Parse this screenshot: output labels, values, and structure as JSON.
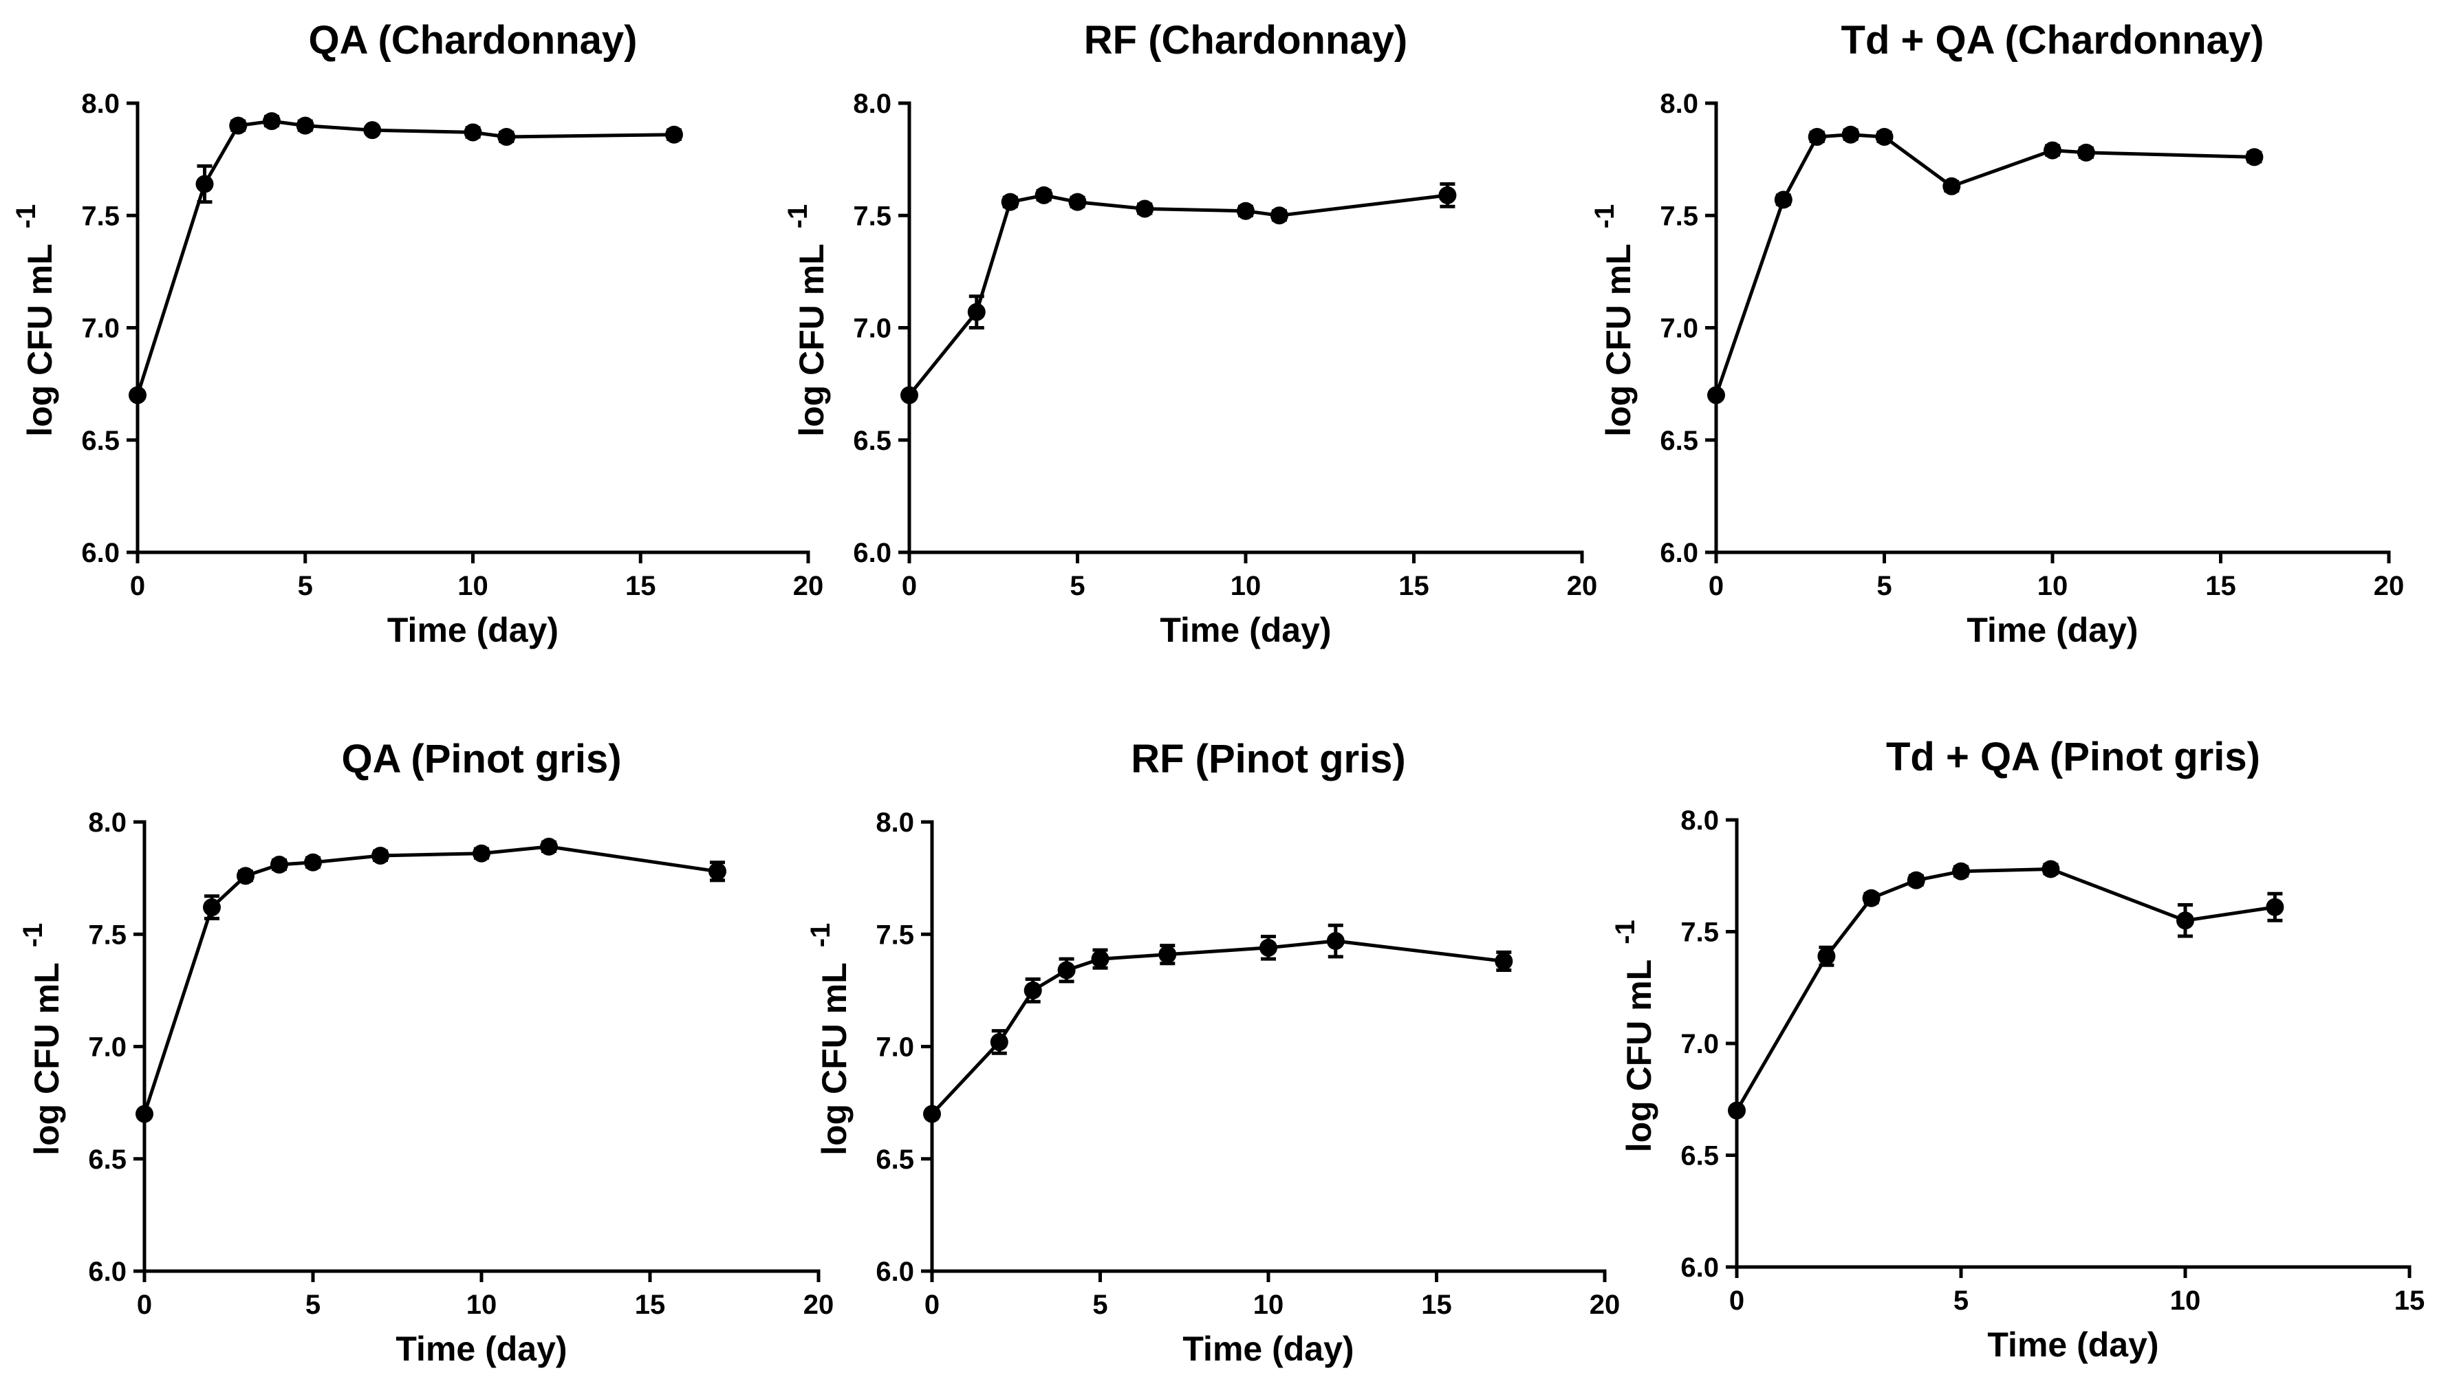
{
  "chart_data": [
    {
      "type": "line",
      "title": "QA  (Chardonnay)",
      "xlabel": "Time (day)",
      "ylabel": "log CFU mL",
      "ylabel_sup": "-1",
      "xlim": [
        0,
        20
      ],
      "ylim": [
        6.0,
        8.0
      ],
      "xticks": [
        0,
        5,
        10,
        15,
        20
      ],
      "yticks": [
        6.0,
        6.5,
        7.0,
        7.5,
        8.0
      ],
      "xtick_labels": [
        "0",
        "5",
        "10",
        "15",
        "20"
      ],
      "ytick_labels": [
        "6.0",
        "6.5",
        "7.0",
        "7.5",
        "8.0"
      ],
      "x": [
        0,
        2,
        3,
        4,
        5,
        7,
        10,
        11,
        16
      ],
      "y": [
        6.7,
        7.64,
        7.9,
        7.92,
        7.9,
        7.88,
        7.87,
        7.85,
        7.86
      ],
      "err": [
        0,
        0.08,
        0.02,
        0.02,
        0.02,
        0.01,
        0.02,
        0.02,
        0.02
      ]
    },
    {
      "type": "line",
      "title": "RF (Chardonnay)",
      "xlabel": "Time (day)",
      "ylabel": "log CFU mL",
      "ylabel_sup": "-1",
      "xlim": [
        0,
        20
      ],
      "ylim": [
        6.0,
        8.0
      ],
      "xticks": [
        0,
        5,
        10,
        15,
        20
      ],
      "yticks": [
        6.0,
        6.5,
        7.0,
        7.5,
        8.0
      ],
      "xtick_labels": [
        "0",
        "5",
        "10",
        "15",
        "20"
      ],
      "ytick_labels": [
        "6.0",
        "6.5",
        "7.0",
        "7.5",
        "8.0"
      ],
      "x": [
        0,
        2,
        3,
        4,
        5,
        7,
        10,
        11,
        16
      ],
      "y": [
        6.7,
        7.07,
        7.56,
        7.59,
        7.56,
        7.53,
        7.52,
        7.5,
        7.59
      ],
      "err": [
        0,
        0.07,
        0.02,
        0.02,
        0.02,
        0.02,
        0.02,
        0.02,
        0.05
      ]
    },
    {
      "type": "line",
      "title": "Td + QA (Chardonnay)",
      "xlabel": "Time (day)",
      "ylabel": "log CFU mL",
      "ylabel_sup": "-1",
      "xlim": [
        0,
        20
      ],
      "ylim": [
        6.0,
        8.0
      ],
      "xticks": [
        0,
        5,
        10,
        15,
        20
      ],
      "yticks": [
        6.0,
        6.5,
        7.0,
        7.5,
        8.0
      ],
      "xtick_labels": [
        "0",
        "5",
        "10",
        "15",
        "20"
      ],
      "ytick_labels": [
        "6.0",
        "6.5",
        "7.0",
        "7.5",
        "8.0"
      ],
      "x": [
        0,
        2,
        3,
        4,
        5,
        7,
        10,
        11,
        16
      ],
      "y": [
        6.7,
        7.57,
        7.85,
        7.86,
        7.85,
        7.63,
        7.79,
        7.78,
        7.76
      ],
      "err": [
        0,
        0.02,
        0.02,
        0.02,
        0.02,
        0.02,
        0.02,
        0.02,
        0.02
      ]
    },
    {
      "type": "line",
      "title": "QA (Pinot gris)",
      "xlabel": "Time (day)",
      "ylabel": "log CFU mL",
      "ylabel_sup": "-1",
      "xlim": [
        0,
        20
      ],
      "ylim": [
        6.0,
        8.0
      ],
      "xticks": [
        0,
        5,
        10,
        15,
        20
      ],
      "yticks": [
        6.0,
        6.5,
        7.0,
        7.5,
        8.0
      ],
      "xtick_labels": [
        "0",
        "5",
        "10",
        "15",
        "20"
      ],
      "ytick_labels": [
        "6.0",
        "6.5",
        "7.0",
        "7.5",
        "8.0"
      ],
      "x": [
        0,
        2,
        3,
        4,
        5,
        7,
        10,
        12,
        17
      ],
      "y": [
        6.7,
        7.62,
        7.76,
        7.81,
        7.82,
        7.85,
        7.86,
        7.89,
        7.78
      ],
      "err": [
        0,
        0.05,
        0.02,
        0.02,
        0.02,
        0.02,
        0.02,
        0.02,
        0.04
      ]
    },
    {
      "type": "line",
      "title": "RF (Pinot gris)",
      "xlabel": "Time (day)",
      "ylabel": "log CFU mL",
      "ylabel_sup": "-1",
      "xlim": [
        0,
        20
      ],
      "ylim": [
        6.0,
        8.0
      ],
      "xticks": [
        0,
        5,
        10,
        15,
        20
      ],
      "yticks": [
        6.0,
        6.5,
        7.0,
        7.5,
        8.0
      ],
      "xtick_labels": [
        "0",
        "5",
        "10",
        "15",
        "20"
      ],
      "ytick_labels": [
        "6.0",
        "6.5",
        "7.0",
        "7.5",
        "8.0"
      ],
      "x": [
        0,
        2,
        3,
        4,
        5,
        7,
        10,
        12,
        17
      ],
      "y": [
        6.7,
        7.02,
        7.25,
        7.34,
        7.39,
        7.41,
        7.44,
        7.47,
        7.38
      ],
      "err": [
        0,
        0.05,
        0.05,
        0.05,
        0.04,
        0.04,
        0.05,
        0.07,
        0.04
      ]
    },
    {
      "type": "line",
      "title": "Td + QA (Pinot gris)",
      "xlabel": "Time (day)",
      "ylabel": "log CFU mL",
      "ylabel_sup": "-1",
      "xlim": [
        0,
        15
      ],
      "ylim": [
        6.0,
        8.0
      ],
      "xticks": [
        0,
        5,
        10,
        15
      ],
      "yticks": [
        6.0,
        6.5,
        7.0,
        7.5,
        8.0
      ],
      "xtick_labels": [
        "0",
        "5",
        "10",
        "15"
      ],
      "ytick_labels": [
        "6.0",
        "6.5",
        "7.0",
        "7.5",
        "8.0"
      ],
      "x": [
        0,
        2,
        3,
        4,
        5,
        7,
        10,
        12
      ],
      "y": [
        6.7,
        7.39,
        7.65,
        7.73,
        7.77,
        7.78,
        7.55,
        7.61
      ],
      "err": [
        0,
        0.04,
        0.02,
        0.02,
        0.02,
        0.02,
        0.07,
        0.06
      ]
    }
  ]
}
